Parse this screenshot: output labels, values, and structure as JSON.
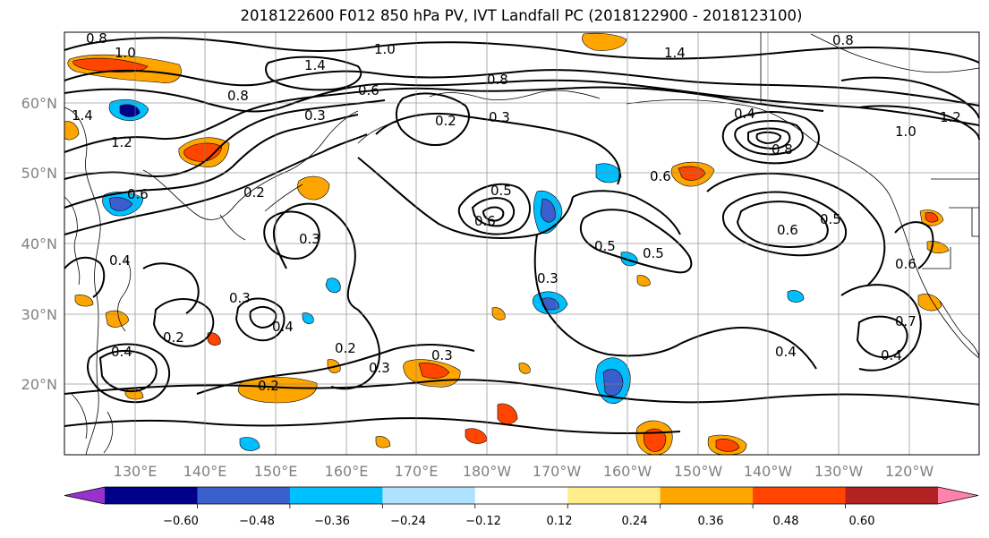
{
  "title": "2018122600 F012 850 hPa PV, IVT Landfall PC (2018122900 - 2018123100)",
  "lat_labels": [
    "60°N",
    "50°N",
    "40°N",
    "30°N",
    "20°N"
  ],
  "lon_labels": [
    "130°E",
    "140°E",
    "150°E",
    "160°E",
    "170°E",
    "180°W",
    "170°W",
    "160°W",
    "150°W",
    "140°W",
    "130°W",
    "120°W"
  ],
  "colorbar": {
    "colors": [
      "#9932CC",
      "#00008B",
      "#3A5FCD",
      "#00BFFF",
      "#B0E2FF",
      "#FFFFFF",
      "#FFEC8B",
      "#FFA500",
      "#FF4500",
      "#B22222",
      "#FF82AB"
    ],
    "tick_labels": [
      "−0.60",
      "−0.48",
      "−0.36",
      "−0.24",
      "−0.12",
      "0.12",
      "0.24",
      "0.36",
      "0.48",
      "0.60"
    ]
  },
  "contour_labels": [
    "0.8",
    "1.0",
    "1.4",
    "1.2",
    "0.8",
    "1.4",
    "1.0",
    "0.8",
    "0.6",
    "0.3",
    "0.2",
    "0.3",
    "0.8",
    "0.4",
    "0.8",
    "1.2",
    "1.0",
    "1.4",
    "0.5",
    "0.6",
    "0.6",
    "0.5",
    "0.5",
    "0.6",
    "0.5",
    "0.3",
    "0.3",
    "0.2",
    "0.6",
    "0.4",
    "0.2",
    "0.4",
    "0.4",
    "0.3",
    "0.2",
    "0.3",
    "0.3",
    "0.2",
    "0.4",
    "0.7",
    "0.4",
    "0.6"
  ]
}
